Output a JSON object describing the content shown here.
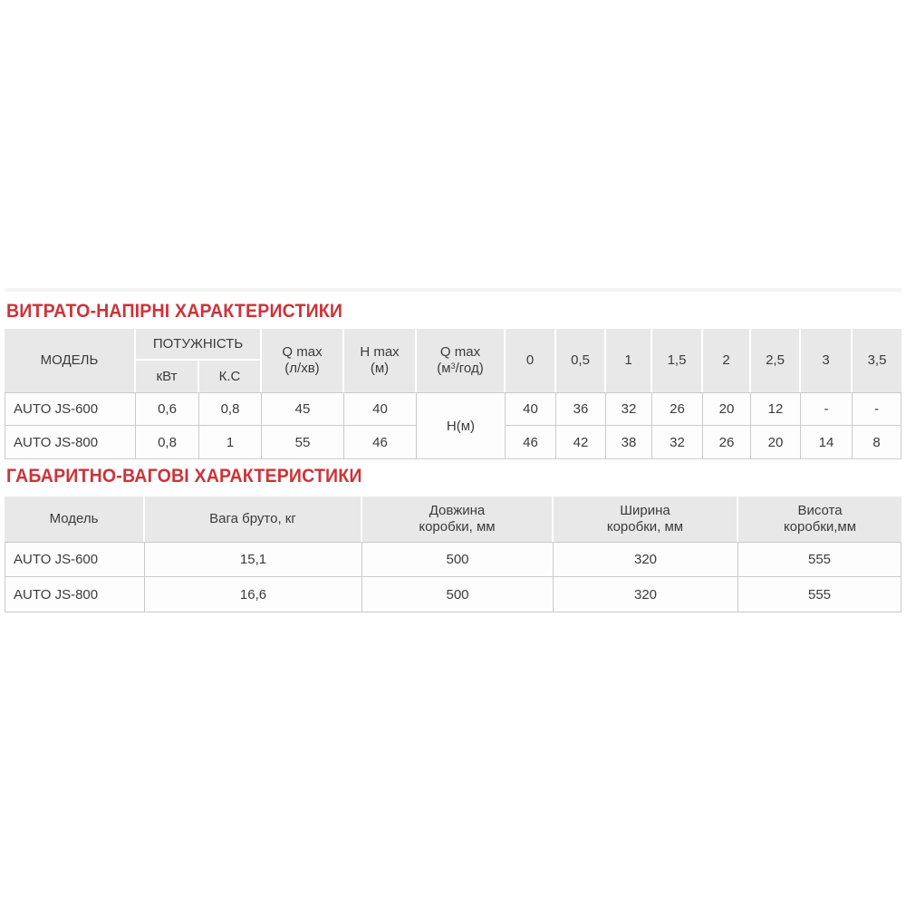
{
  "titles": {
    "flow": "ВИТРАТО-НАПІРНІ ХАРАКТЕРИСТИКИ",
    "dimensions": "ГАБАРИТНО-ВАГОВІ ХАРАКТЕРИСТИКИ"
  },
  "colors": {
    "title_red": "#cb343a",
    "header_bg": "#e8e8e8",
    "border": "#cbcbcb",
    "text": "#3b3b3b"
  },
  "flow_table": {
    "header": {
      "model": "МОДЕЛЬ",
      "power": "ПОТУЖНІСТЬ",
      "power_kw": "кВт",
      "power_hp": "К.С",
      "qmax_flow_line1": "Q max",
      "qmax_flow_line2": "(л/хв)",
      "hmax_line1": "H max",
      "hmax_line2": "(м)",
      "qmax_hour_line1": "Q max",
      "qmax_hour_line2_pre": "(м",
      "qmax_hour_line2_sup": "3",
      "qmax_hour_line2_post": "/год)",
      "flow_points": [
        "0",
        "0,5",
        "1",
        "1,5",
        "2",
        "2,5",
        "3",
        "3,5"
      ]
    },
    "head_unit_cell": "Н(м)",
    "rows": [
      {
        "model": "AUTO JS-600",
        "kw": "0,6",
        "hp": "0,8",
        "qmax": "45",
        "hmax": "40",
        "heads": [
          "40",
          "36",
          "32",
          "26",
          "20",
          "12",
          "-",
          "-"
        ]
      },
      {
        "model": "AUTO JS-800",
        "kw": "0,8",
        "hp": "1",
        "qmax": "55",
        "hmax": "46",
        "heads": [
          "46",
          "42",
          "38",
          "32",
          "26",
          "20",
          "14",
          "8"
        ]
      }
    ]
  },
  "dim_table": {
    "headers": [
      {
        "line1": "Модель",
        "line2": ""
      },
      {
        "line1": "Вага бруто, кг",
        "line2": ""
      },
      {
        "line1": "Довжина",
        "line2": "коробки, мм"
      },
      {
        "line1": "Ширина",
        "line2": "коробки, мм"
      },
      {
        "line1": "Висота",
        "line2": "коробки,мм"
      }
    ],
    "rows": [
      {
        "model": "AUTO JS-600",
        "weight": "15,1",
        "length": "500",
        "width": "320",
        "height": "555"
      },
      {
        "model": "AUTO JS-800",
        "weight": "16,6",
        "length": "500",
        "width": "320",
        "height": "555"
      }
    ]
  }
}
